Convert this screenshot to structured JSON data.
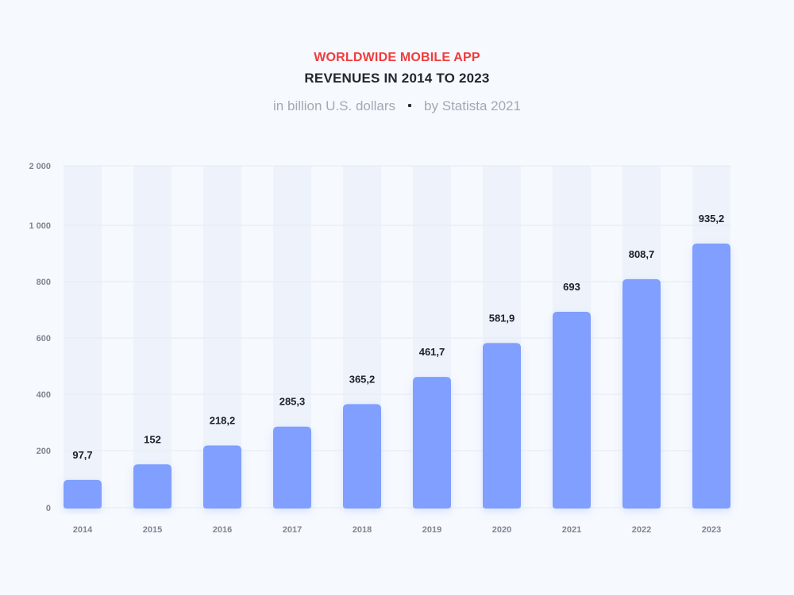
{
  "header": {
    "title_line1": "WORLDWIDE MOBILE APP",
    "title_line2": "REVENUES IN 2014 TO 2023",
    "subtitle_unit": "in billion U.S. dollars",
    "subtitle_source": "by Statista 2021"
  },
  "colors": {
    "title_accent": "#f03c3c",
    "bar": "#809ffe",
    "column_band": "#edf2fb",
    "gridline": "#e6ebf3"
  },
  "chart_data": {
    "type": "bar",
    "title": "WORLDWIDE MOBILE APP REVENUES IN 2014 TO 2023",
    "subtitle": "in billion U.S. dollars • by Statista 2021",
    "categories": [
      "2014",
      "2015",
      "2016",
      "2017",
      "2018",
      "2019",
      "2020",
      "2021",
      "2022",
      "2023"
    ],
    "values": [
      97.7,
      152,
      218.2,
      285.3,
      365.2,
      461.7,
      581.9,
      693,
      808.7,
      935.2
    ],
    "value_labels": [
      "97,7",
      "152",
      "218,2",
      "285,3",
      "365,2",
      "461,7",
      "581,9",
      "693",
      "808,7",
      "935,2"
    ],
    "y_ticks": [
      0,
      200,
      400,
      600,
      800,
      1000,
      2000
    ],
    "y_tick_labels": [
      "0",
      "200",
      "400",
      "600",
      "800",
      "1 000",
      "2 000"
    ],
    "xlabel": "",
    "ylabel": "",
    "grid": true,
    "legend": "none"
  }
}
